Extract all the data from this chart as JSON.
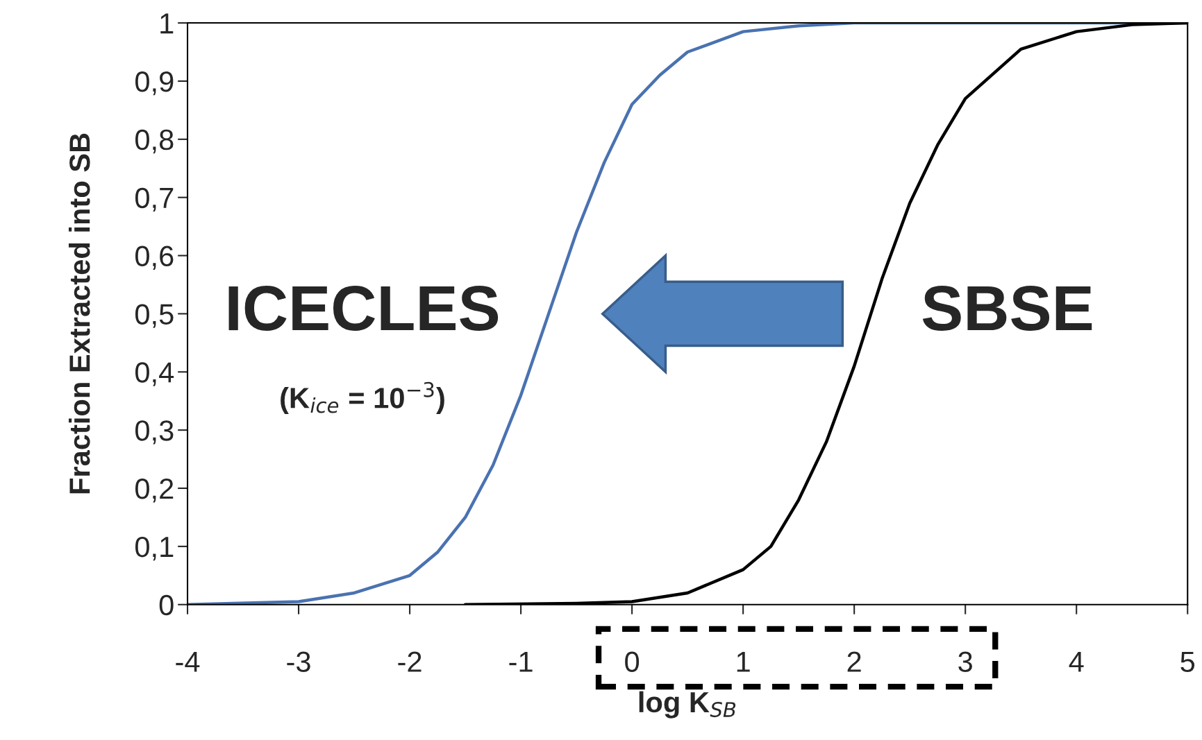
{
  "chart_data": {
    "type": "line",
    "xlabel": "log K$_{SB}$",
    "ylabel": "Fraction Extracted into SB",
    "xlim": [
      -4,
      5
    ],
    "xticks": [
      -4,
      -3,
      -2,
      -1,
      0,
      1,
      2,
      3,
      4,
      5
    ],
    "ylim": [
      0,
      1
    ],
    "yticks": [
      0,
      {
        "value": 0.1,
        "label": "0,1"
      },
      {
        "value": 0.2,
        "label": "0,2"
      },
      {
        "value": 0.3,
        "label": "0,3"
      },
      {
        "value": 0.4,
        "label": "0,4"
      },
      {
        "value": 0.5,
        "label": "0,5"
      },
      {
        "value": 0.6,
        "label": "0,6"
      },
      {
        "value": 0.7,
        "label": "0,7"
      },
      {
        "value": 0.8,
        "label": "0,8"
      },
      {
        "value": 0.9,
        "label": "0,9"
      },
      1
    ],
    "grid": false,
    "legend": false,
    "marker": "none",
    "line_style": "solid",
    "annotations": [
      "ICECLES",
      "(K$_{ice}$ = 10$^{−3}$)",
      "SBSE"
    ],
    "series": [
      {
        "color": "#4a72b0",
        "x": [
          -4,
          -3,
          -2.5,
          -2,
          -1.75,
          -1.5,
          -1.25,
          -1,
          -0.75,
          -0.5,
          -0.25,
          0,
          0.25,
          0.5,
          1,
          1.5,
          2,
          3,
          5
        ],
        "values": [
          0,
          0.005,
          0.02,
          0.05,
          0.09,
          0.15,
          0.24,
          0.36,
          0.5,
          0.64,
          0.76,
          0.86,
          0.91,
          0.95,
          0.985,
          0.995,
          1,
          1,
          1
        ]
      },
      {
        "color": "#000000",
        "x": [
          -1.5,
          -0.5,
          0,
          0.5,
          1,
          1.25,
          1.5,
          1.75,
          2,
          2.25,
          2.5,
          2.75,
          3,
          3.5,
          4,
          4.5,
          5
        ],
        "values": [
          0,
          0.002,
          0.005,
          0.02,
          0.06,
          0.1,
          0.18,
          0.28,
          0.41,
          0.56,
          0.69,
          0.79,
          0.87,
          0.955,
          0.985,
          0.997,
          1
        ]
      }
    ]
  }
}
